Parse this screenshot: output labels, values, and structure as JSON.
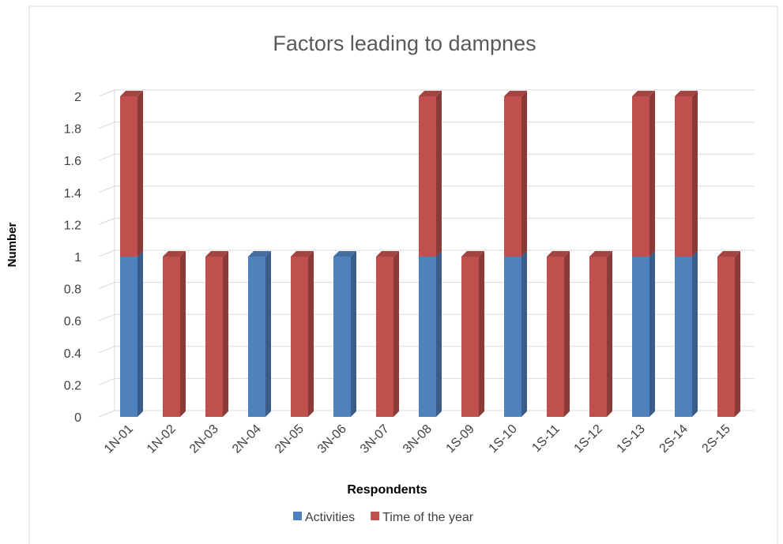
{
  "chart_data": {
    "type": "bar3d_stacked",
    "title": "Factors leading to dampnes",
    "x_label": "Respondents",
    "y_label": "Number",
    "categories": [
      "1N-01",
      "1N-02",
      "2N-03",
      "2N-04",
      "2N-05",
      "3N-06",
      "3N-07",
      "3N-08",
      "1S-09",
      "1S-10",
      "1S-11",
      "1S-12",
      "1S-13",
      "2S-14",
      "2S-15"
    ],
    "series": [
      {
        "name": "Activities",
        "color": "#4f81bd",
        "values": [
          1,
          0,
          0,
          1,
          0,
          1,
          0,
          1,
          0,
          1,
          0,
          0,
          1,
          1,
          0
        ]
      },
      {
        "name": "Time of the year",
        "color": "#c0504d",
        "values": [
          1,
          1,
          1,
          0,
          1,
          0,
          1,
          1,
          1,
          1,
          1,
          1,
          1,
          1,
          1
        ]
      }
    ],
    "ylim": [
      0,
      2
    ],
    "yticks": [
      0,
      0.2,
      0.4,
      0.6,
      0.8,
      1,
      1.2,
      1.4,
      1.6,
      1.8,
      2
    ],
    "grid": true,
    "legend": "bottom"
  }
}
